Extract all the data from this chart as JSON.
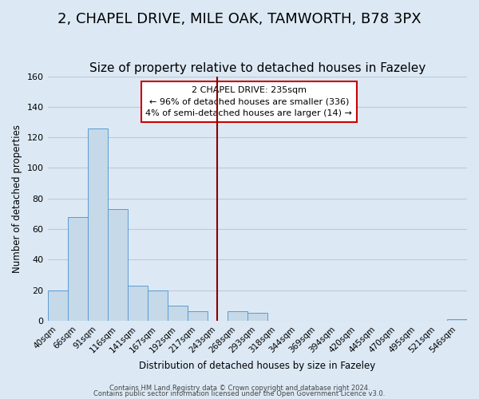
{
  "title": "2, CHAPEL DRIVE, MILE OAK, TAMWORTH, B78 3PX",
  "subtitle": "Size of property relative to detached houses in Fazeley",
  "xlabel": "Distribution of detached houses by size in Fazeley",
  "ylabel": "Number of detached properties",
  "footer_line1": "Contains HM Land Registry data © Crown copyright and database right 2024.",
  "footer_line2": "Contains public sector information licensed under the Open Government Licence v3.0.",
  "bar_labels": [
    "40sqm",
    "66sqm",
    "91sqm",
    "116sqm",
    "141sqm",
    "167sqm",
    "192sqm",
    "217sqm",
    "243sqm",
    "268sqm",
    "293sqm",
    "318sqm",
    "344sqm",
    "369sqm",
    "394sqm",
    "420sqm",
    "445sqm",
    "470sqm",
    "495sqm",
    "521sqm",
    "546sqm"
  ],
  "bar_values": [
    20,
    68,
    126,
    73,
    23,
    20,
    10,
    6,
    0,
    6,
    5,
    0,
    0,
    0,
    0,
    0,
    0,
    0,
    0,
    0,
    1
  ],
  "bar_color": "#c5d9e8",
  "bar_edge_color": "#5b9bd5",
  "background_color": "#dce9f5",
  "vline_x": 8.0,
  "vline_color": "#8b0000",
  "annotation_box_text_line1": "2 CHAPEL DRIVE: 235sqm",
  "annotation_box_text_line2": "← 96% of detached houses are smaller (336)",
  "annotation_box_text_line3": "4% of semi-detached houses are larger (14) →",
  "annotation_box_edge_color": "#cc0000",
  "annotation_box_facecolor": "#ffffff",
  "ylim": [
    0,
    160
  ],
  "yticks": [
    0,
    20,
    40,
    60,
    80,
    100,
    120,
    140,
    160
  ],
  "grid_color": "#c0c8d8",
  "title_fontsize": 13,
  "subtitle_fontsize": 11
}
